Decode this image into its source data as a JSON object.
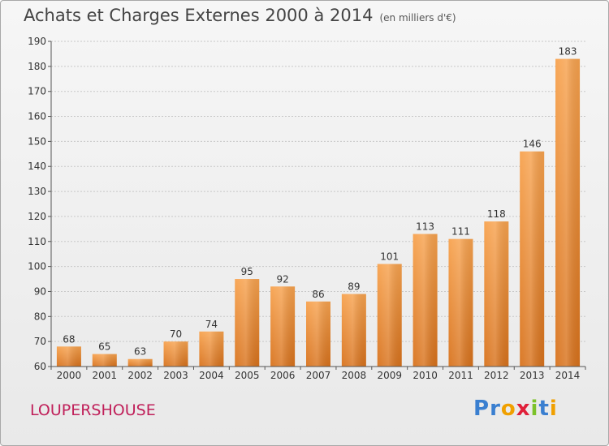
{
  "title": "Achats et Charges Externes 2000 à 2014",
  "subtitle": "(en milliers d'€)",
  "commune": "LOUPERSHOUSE",
  "logo": {
    "text": "Proxiti",
    "colors": [
      "#3a7fd0",
      "#3a7fd0",
      "#f0a000",
      "#e0203a",
      "#7cc22a",
      "#3a7fd0",
      "#f0a000"
    ]
  },
  "chart_data": {
    "type": "bar",
    "categories": [
      "2000",
      "2001",
      "2002",
      "2003",
      "2004",
      "2005",
      "2006",
      "2007",
      "2008",
      "2009",
      "2010",
      "2011",
      "2012",
      "2013",
      "2014"
    ],
    "values": [
      68,
      65,
      63,
      70,
      74,
      95,
      92,
      86,
      89,
      101,
      113,
      111,
      118,
      146,
      183
    ],
    "ylim": [
      60,
      190
    ],
    "yticks": [
      60,
      70,
      80,
      90,
      100,
      110,
      120,
      130,
      140,
      150,
      160,
      170,
      180,
      190
    ],
    "grid": "horizontal",
    "bar_color": "#f08a2a",
    "xlabel": "",
    "ylabel": ""
  }
}
